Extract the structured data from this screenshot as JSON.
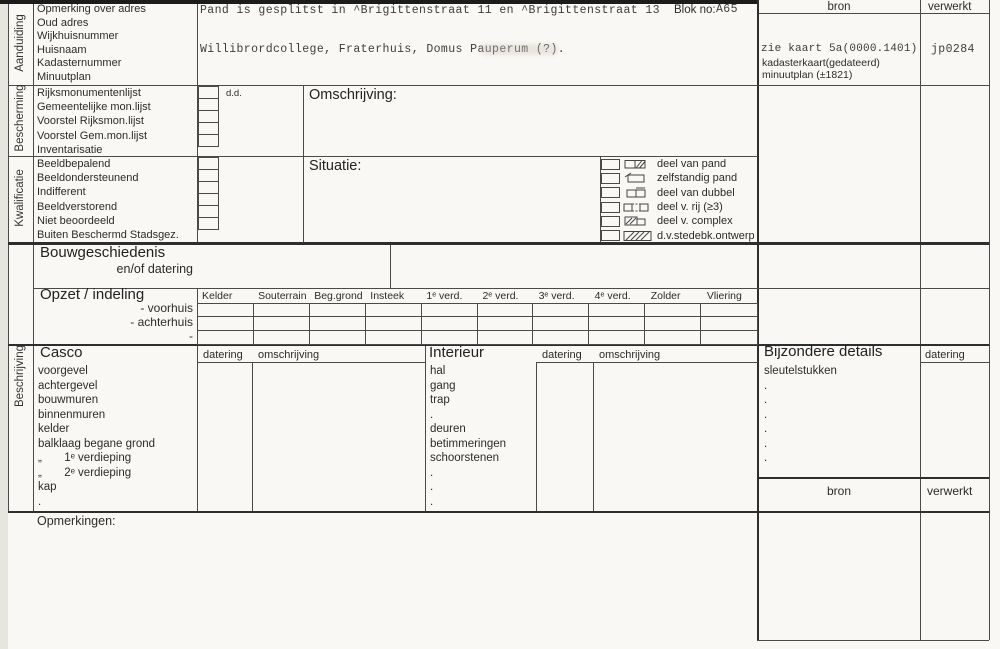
{
  "colors": {
    "paper": "#f9f8f4",
    "line": "#4a4a4a",
    "text": "#2b2b2b",
    "top_bar": "#1c1c1c"
  },
  "aanduiding": {
    "section_label": "Aanduiding",
    "rows": [
      "Opmerking over adres",
      "Oud adres",
      "Wijkhuisnummer",
      "Huisnaam",
      "Kadasternummer",
      "Minuutplan"
    ]
  },
  "header": {
    "typed_line1": "Pand is gesplitst in ^Brigittenstraat 11 en ^Brigittenstraat 13",
    "blok_label": "Blok no:",
    "blok_value": "A65",
    "typed_line2": "Willibrordcollege, Fraterhuis, Domus Pauperum (?)."
  },
  "bron_top": {
    "bron_label": "bron",
    "verwerkt_label": "verwerkt",
    "typed_line": "zie kaart 5a(0000.1401)",
    "line2": "kadasterkaart(gedateerd)",
    "line3": "minuutplan (±1821)",
    "verwerkt_value": "jp0284"
  },
  "bescherming": {
    "section_label": "Bescherming",
    "items": [
      "Rijksmonumentenlijst",
      "Gemeentelijke mon.lijst",
      "Voorstel Rijksmon.lijst",
      "Voorstel Gem.mon.lijst",
      "Inventarisatie"
    ],
    "dd_label": "d.d.",
    "omschrijving_label": "Omschrijving:"
  },
  "kwalificatie": {
    "section_label": "Kwalificatie",
    "items": [
      "Beeldbepalend",
      "Beeldondersteunend",
      "Indifferent",
      "Beeldverstorend",
      "Niet beoordeeld",
      "Buiten Beschermd Stadsgez."
    ],
    "situatie_label": "Situatie:",
    "options": [
      "deel van pand",
      "zelfstandig pand",
      "deel van dubbel",
      "deel v. rij  (≥3)",
      "deel v. complex",
      "d.v.stedebk.ontwerp"
    ],
    "option_icons": [
      "part-of-building-icon",
      "detached-building-icon",
      "part-of-double-icon",
      "part-of-row-icon",
      "part-of-complex-icon",
      "urban-design-icon"
    ]
  },
  "beschrijving": {
    "section_label": "Beschrijving"
  },
  "bouwgeschiedenis": {
    "title": "Bouwgeschiedenis",
    "subtitle": "en/of datering"
  },
  "opzet": {
    "title": "Opzet / indeling",
    "row_labels": [
      "- voorhuis",
      "- achterhuis",
      "-"
    ],
    "columns": [
      "Kelder",
      "Souterrain",
      "Beg.grond",
      "Insteek",
      "1ᵉ verd.",
      "2ᵉ verd.",
      "3ᵉ verd.",
      "4ᵉ verd.",
      "Zolder",
      "Vliering"
    ]
  },
  "casco": {
    "title": "Casco",
    "datering_label": "datering",
    "omschrijving_label": "omschrijving",
    "rows": [
      "voorgevel",
      "achtergevel",
      "bouwmuren",
      "binnenmuren",
      "kelder",
      "balklaag begane grond",
      "„       1ᵉ verdieping",
      "„       2ᵉ verdieping",
      "kap",
      "."
    ]
  },
  "interieur": {
    "title": "Interieur",
    "datering_label": "datering",
    "omschrijving_label": "omschrijving",
    "rows": [
      "hal",
      "gang",
      "trap",
      ".",
      "deuren",
      "betimmeringen",
      "schoorstenen",
      ".",
      ".",
      "."
    ]
  },
  "bijzondere_details": {
    "title": "Bijzondere details",
    "datering_label": "datering",
    "rows": [
      "sleutelstukken",
      ".",
      ".",
      ".",
      ".",
      ".",
      "."
    ]
  },
  "bron_bottom": {
    "bron_label": "bron",
    "verwerkt_label": "verwerkt"
  },
  "opmerkingen": {
    "label": "Opmerkingen:"
  }
}
